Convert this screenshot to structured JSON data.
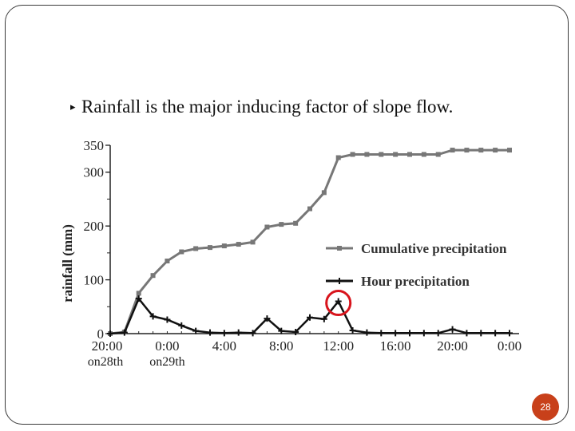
{
  "slide": {
    "bullet_text": "Rainfall is the major inducing factor of slope flow.",
    "page_number": "28",
    "accent_color": "#c8401a"
  },
  "chart_data": {
    "type": "line",
    "title": "",
    "xlabel": "",
    "ylabel": "rainfall (mm)",
    "ylim": [
      0,
      350
    ],
    "yticks": [
      0,
      100,
      200,
      300,
      350
    ],
    "x_ticks": [
      {
        "h": 0,
        "label": "20:00",
        "sub": "on28th"
      },
      {
        "h": 4,
        "label": "0:00",
        "sub": "on29th"
      },
      {
        "h": 8,
        "label": "4:00",
        "sub": ""
      },
      {
        "h": 12,
        "label": "8:00",
        "sub": ""
      },
      {
        "h": 16,
        "label": "12:00",
        "sub": ""
      },
      {
        "h": 20,
        "label": "16:00",
        "sub": ""
      },
      {
        "h": 24,
        "label": "20:00",
        "sub": ""
      },
      {
        "h": 28,
        "label": "0:00",
        "sub": ""
      }
    ],
    "legend_position": "right-middle",
    "series": [
      {
        "name": "Cumulative precipitation",
        "color": "#777777",
        "marker": "square",
        "points": [
          [
            0,
            0
          ],
          [
            1,
            3
          ],
          [
            2,
            75
          ],
          [
            3,
            108
          ],
          [
            4,
            135
          ],
          [
            5,
            152
          ],
          [
            6,
            158
          ],
          [
            7,
            160
          ],
          [
            8,
            163
          ],
          [
            9,
            166
          ],
          [
            10,
            170
          ],
          [
            11,
            198
          ],
          [
            12,
            203
          ],
          [
            13,
            205
          ],
          [
            14,
            232
          ],
          [
            15,
            262
          ],
          [
            16,
            327
          ],
          [
            17,
            333
          ],
          [
            18,
            333
          ],
          [
            19,
            333
          ],
          [
            20,
            333
          ],
          [
            21,
            333
          ],
          [
            22,
            333
          ],
          [
            23,
            333
          ],
          [
            24,
            341
          ],
          [
            25,
            341
          ],
          [
            26,
            341
          ],
          [
            27,
            341
          ],
          [
            28,
            341
          ]
        ]
      },
      {
        "name": "Hour precipitation",
        "color": "#111111",
        "marker": "plus",
        "points": [
          [
            0,
            0
          ],
          [
            1,
            2
          ],
          [
            2,
            65
          ],
          [
            3,
            32
          ],
          [
            4,
            26
          ],
          [
            5,
            15
          ],
          [
            6,
            5
          ],
          [
            7,
            2
          ],
          [
            8,
            1
          ],
          [
            9,
            2
          ],
          [
            10,
            1
          ],
          [
            11,
            28
          ],
          [
            12,
            5
          ],
          [
            13,
            3
          ],
          [
            14,
            30
          ],
          [
            15,
            27
          ],
          [
            16,
            60
          ],
          [
            17,
            6
          ],
          [
            18,
            2
          ],
          [
            19,
            1
          ],
          [
            20,
            1
          ],
          [
            21,
            1
          ],
          [
            22,
            1
          ],
          [
            23,
            1
          ],
          [
            24,
            8
          ],
          [
            25,
            1
          ],
          [
            26,
            1
          ],
          [
            27,
            1
          ],
          [
            28,
            1
          ]
        ]
      }
    ],
    "annotation": "red-circle-on-hour-peak-at-12:00"
  }
}
